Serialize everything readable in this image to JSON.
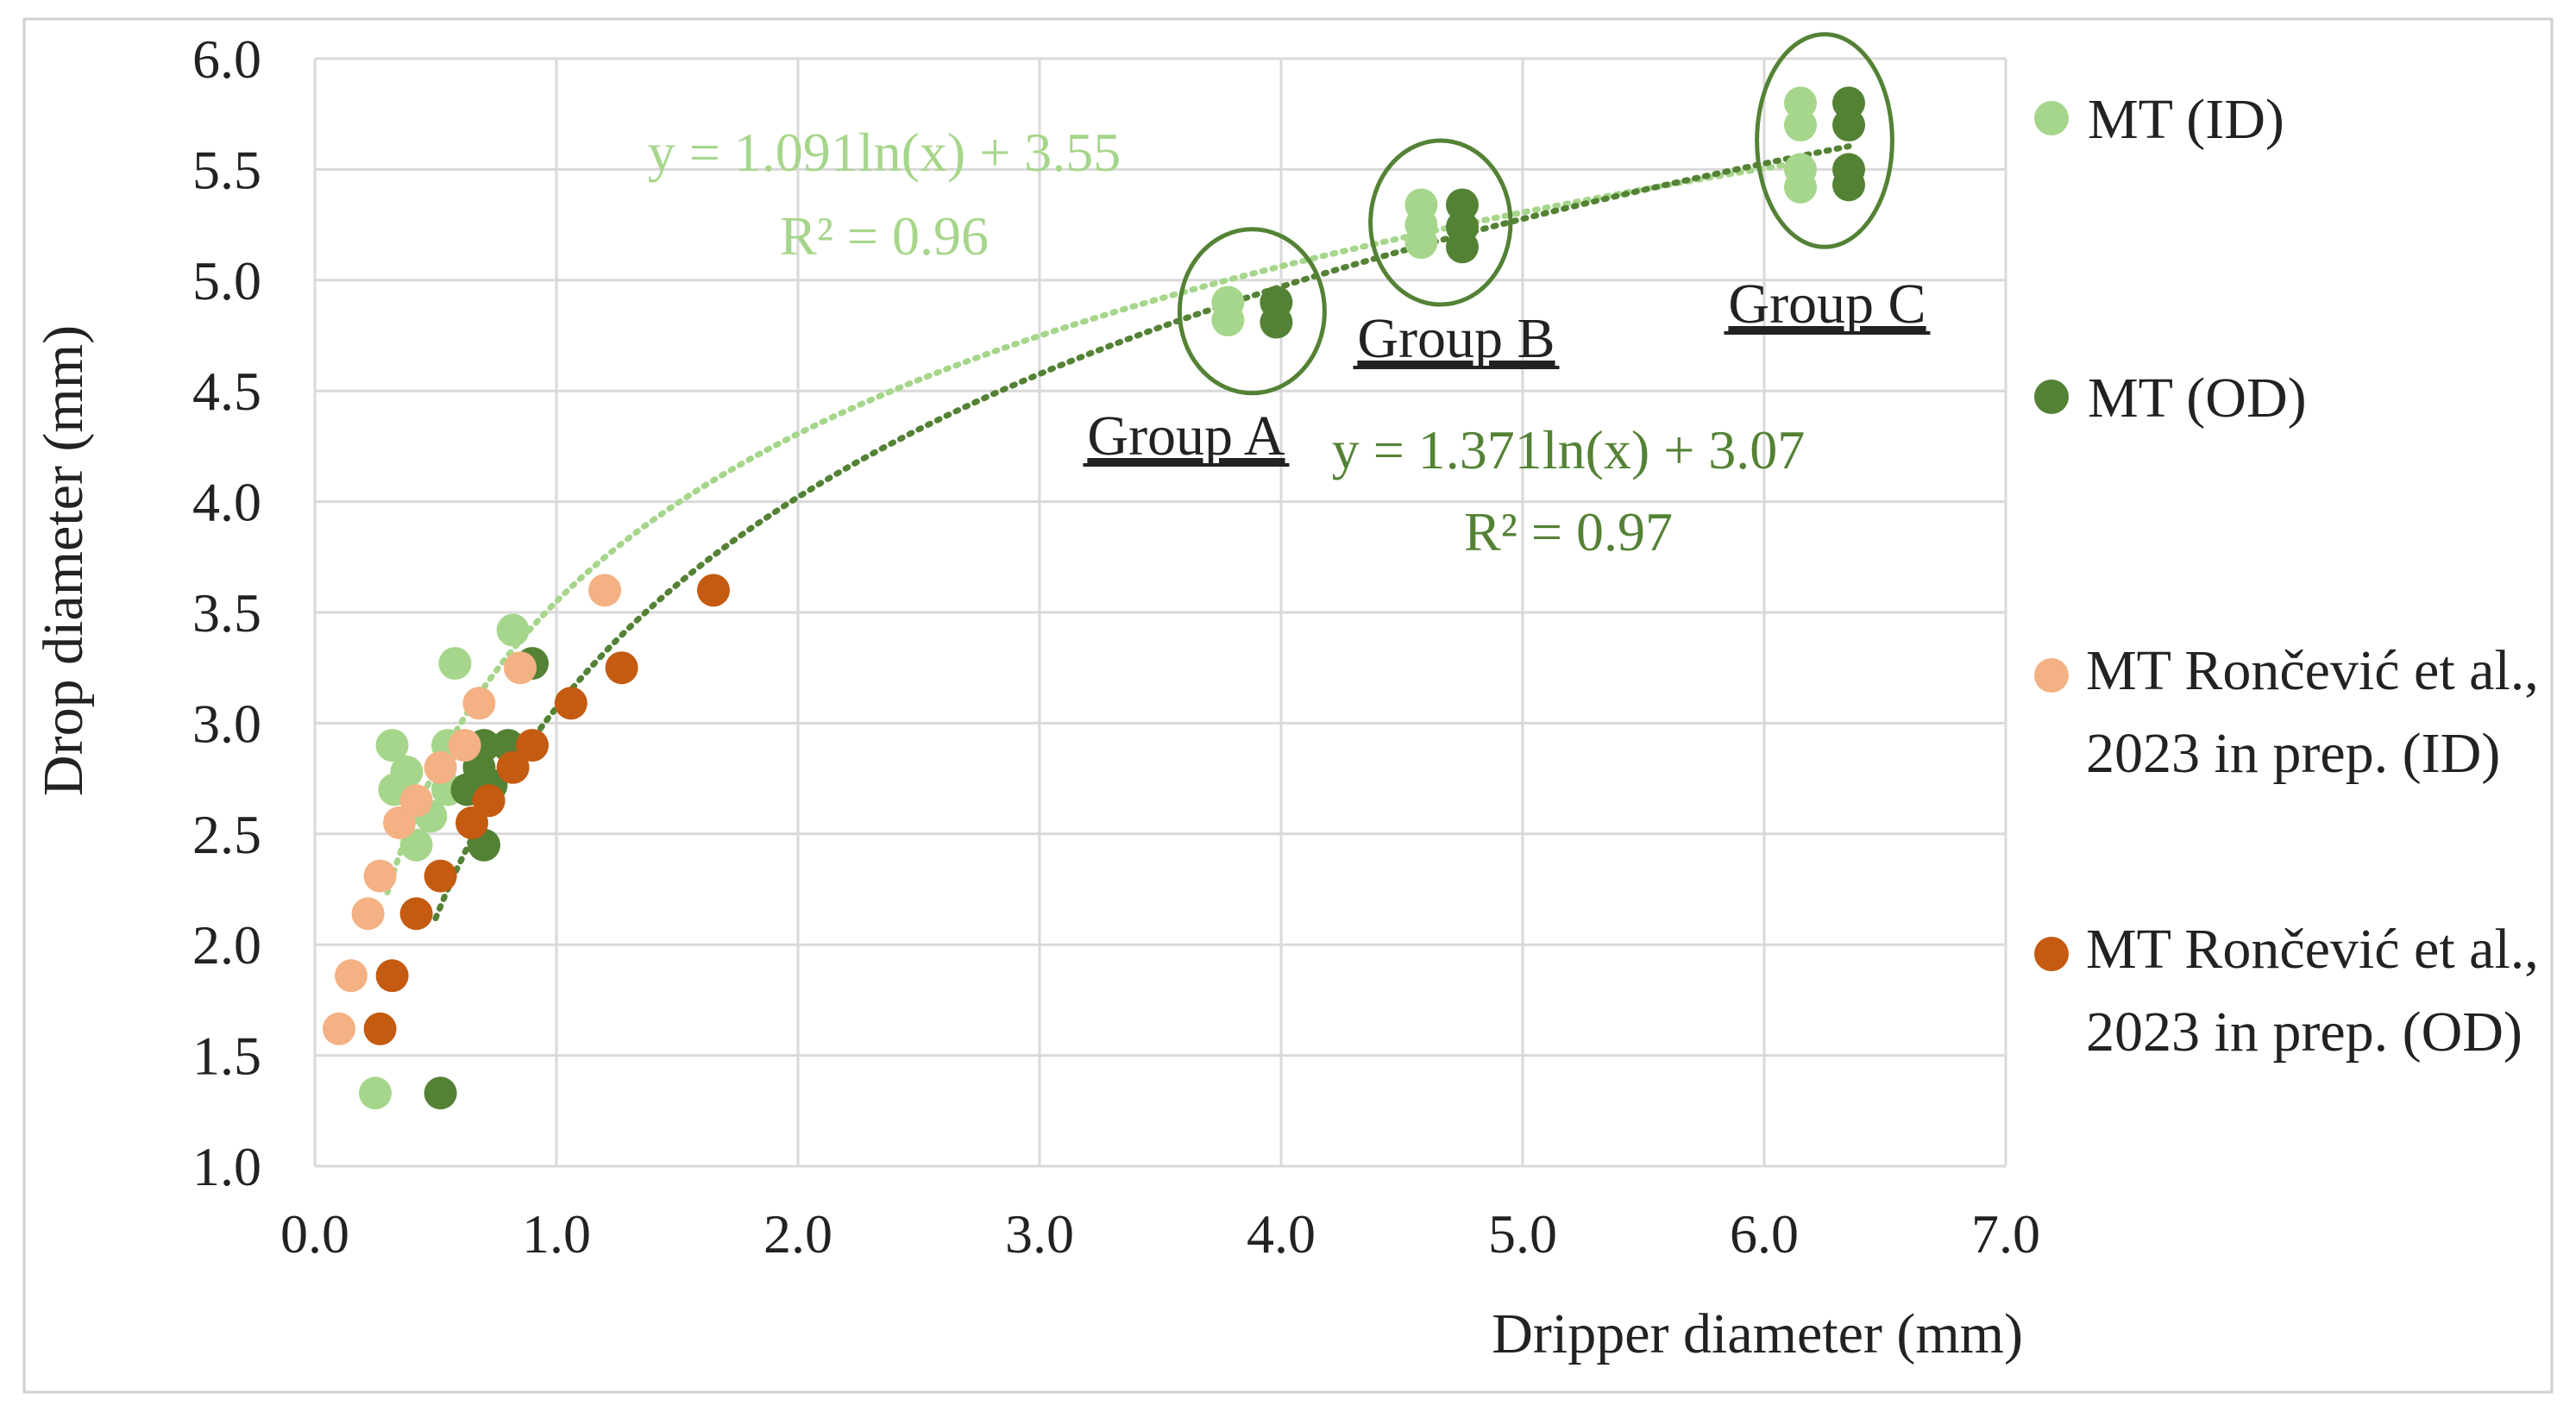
{
  "chart_data": {
    "type": "scatter",
    "xlabel": "Dripper diameter (mm)",
    "ylabel": "Drop diameter (mm)",
    "xlim": [
      0.0,
      7.0
    ],
    "ylim": [
      1.0,
      6.0
    ],
    "x_ticks": [
      "0.0",
      "1.0",
      "2.0",
      "3.0",
      "4.0",
      "5.0",
      "6.0",
      "7.0"
    ],
    "y_ticks": [
      "1.0",
      "1.5",
      "2.0",
      "2.5",
      "3.0",
      "3.5",
      "4.0",
      "4.5",
      "5.0",
      "5.5",
      "6.0"
    ],
    "grid": true,
    "legend_position": "right",
    "series": [
      {
        "name": "MT (ID)",
        "color": "#a6d68b",
        "points": [
          [
            3.78,
            4.82
          ],
          [
            3.78,
            4.9
          ],
          [
            4.58,
            5.17
          ],
          [
            4.58,
            5.25
          ],
          [
            4.58,
            5.34
          ],
          [
            6.15,
            5.42
          ],
          [
            6.15,
            5.5
          ],
          [
            6.15,
            5.7
          ],
          [
            6.15,
            5.8
          ],
          [
            0.82,
            3.42
          ],
          [
            0.58,
            3.27
          ],
          [
            0.32,
            2.9
          ],
          [
            0.55,
            2.9
          ],
          [
            0.38,
            2.78
          ],
          [
            0.33,
            2.7
          ],
          [
            0.55,
            2.7
          ],
          [
            0.48,
            2.58
          ],
          [
            0.42,
            2.45
          ],
          [
            0.25,
            1.33
          ]
        ]
      },
      {
        "name": "MT (OD)",
        "color": "#548235",
        "points": [
          [
            3.98,
            4.81
          ],
          [
            3.98,
            4.9
          ],
          [
            4.75,
            5.15
          ],
          [
            4.75,
            5.24
          ],
          [
            4.75,
            5.34
          ],
          [
            6.35,
            5.43
          ],
          [
            6.35,
            5.5
          ],
          [
            6.35,
            5.7
          ],
          [
            6.35,
            5.8
          ],
          [
            0.9,
            3.27
          ],
          [
            0.7,
            2.9
          ],
          [
            0.8,
            2.9
          ],
          [
            0.68,
            2.8
          ],
          [
            0.63,
            2.7
          ],
          [
            0.73,
            2.72
          ],
          [
            0.7,
            2.45
          ],
          [
            0.52,
            1.33
          ]
        ]
      },
      {
        "name": "MT Rončević et al., 2023 in prep. (ID)",
        "color": "#f4b183",
        "points": [
          [
            1.2,
            3.6
          ],
          [
            0.85,
            3.25
          ],
          [
            0.68,
            3.09
          ],
          [
            0.62,
            2.9
          ],
          [
            0.52,
            2.8
          ],
          [
            0.42,
            2.65
          ],
          [
            0.35,
            2.55
          ],
          [
            0.27,
            2.31
          ],
          [
            0.22,
            2.14
          ],
          [
            0.15,
            1.86
          ],
          [
            0.1,
            1.62
          ]
        ]
      },
      {
        "name": "MT Rončević et al., 2023 in prep. (OD)",
        "color": "#c55a11",
        "points": [
          [
            1.65,
            3.6
          ],
          [
            1.27,
            3.25
          ],
          [
            1.06,
            3.09
          ],
          [
            0.9,
            2.9
          ],
          [
            0.82,
            2.8
          ],
          [
            0.72,
            2.65
          ],
          [
            0.65,
            2.55
          ],
          [
            0.52,
            2.31
          ],
          [
            0.42,
            2.14
          ],
          [
            0.32,
            1.86
          ],
          [
            0.27,
            1.62
          ]
        ]
      }
    ],
    "trendlines": [
      {
        "equation": "y = 1.091ln(x) + 3.55",
        "r2": "R² = 0.96",
        "a": 1.091,
        "b": 3.55,
        "x_range": [
          0.3,
          6.15
        ],
        "color": "#a6d68b"
      },
      {
        "equation": "y = 1.371ln(x) + 3.07",
        "r2": "R² = 0.97",
        "a": 1.371,
        "b": 3.07,
        "x_range": [
          0.5,
          6.35
        ],
        "color": "#548235"
      }
    ],
    "groups": [
      {
        "label": "Group A",
        "center": [
          3.88,
          4.86
        ],
        "rx": 0.3,
        "ry": 0.37
      },
      {
        "label": "Group B",
        "center": [
          4.66,
          5.26
        ],
        "rx": 0.29,
        "ry": 0.37
      },
      {
        "label": "Group C",
        "center": [
          6.25,
          5.63
        ],
        "rx": 0.28,
        "ry": 0.48
      }
    ]
  }
}
